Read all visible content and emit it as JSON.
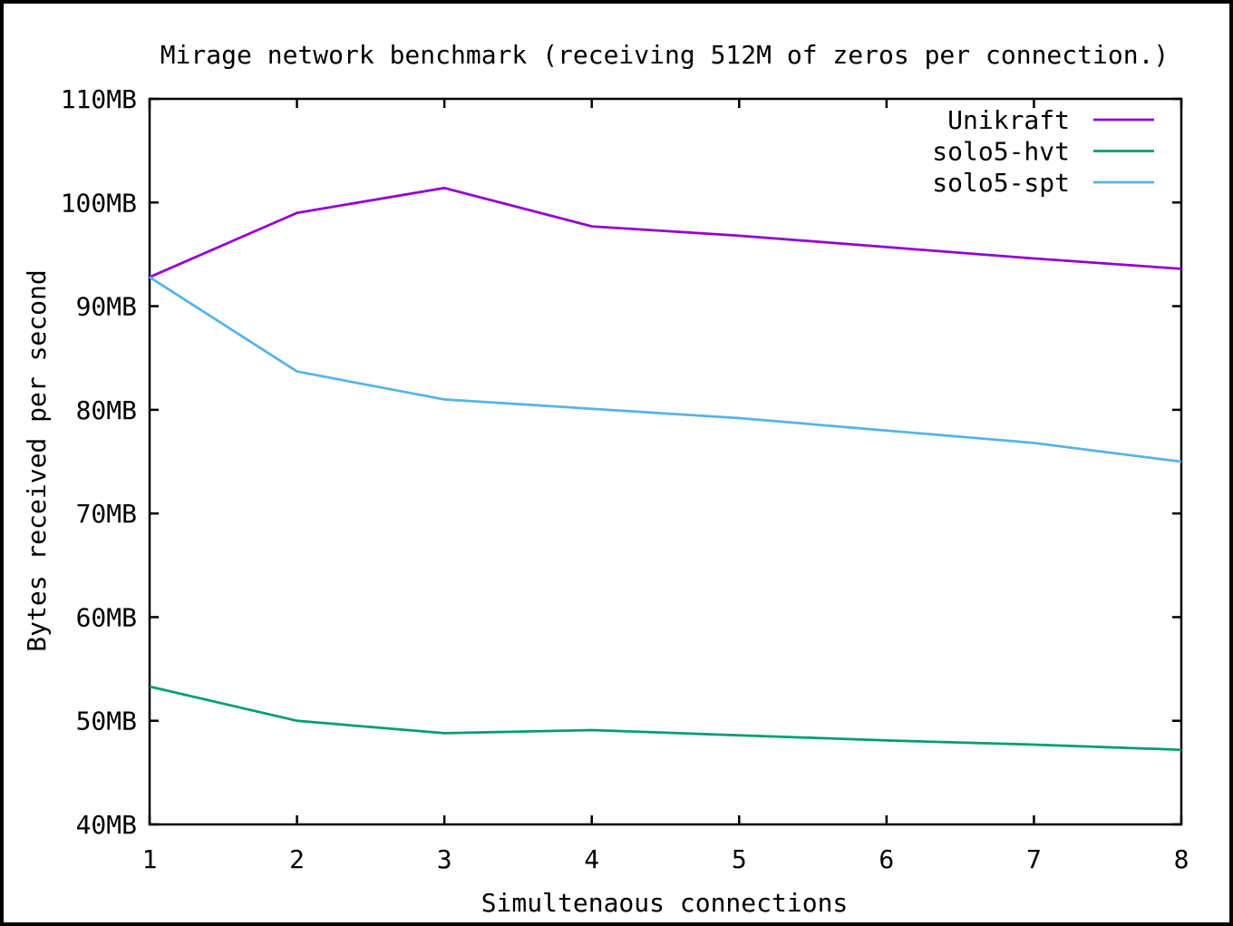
{
  "chart_data": {
    "type": "line",
    "title": "Mirage network benchmark (receiving 512M of zeros per connection.)",
    "xlabel": "Simultenaous connections",
    "ylabel": "Bytes received per second",
    "x": [
      1,
      2,
      3,
      4,
      5,
      6,
      7,
      8
    ],
    "xlim": [
      1,
      8
    ],
    "ylim": [
      40,
      110
    ],
    "ytick_step": 10,
    "ytick_format": "{v}MB",
    "xtick_labels": [
      "1",
      "2",
      "3",
      "4",
      "5",
      "6",
      "7",
      "8"
    ],
    "ytick_labels": [
      "40MB",
      "50MB",
      "60MB",
      "70MB",
      "80MB",
      "90MB",
      "100MB",
      "110MB"
    ],
    "grid": false,
    "legend_position": "top-right-inside",
    "series": [
      {
        "name": "Unikraft",
        "color": "#9400d3",
        "values": [
          92.8,
          99.0,
          101.4,
          97.7,
          96.8,
          95.7,
          94.6,
          93.6
        ]
      },
      {
        "name": "solo5-hvt",
        "color": "#009e73",
        "values": [
          53.3,
          50.0,
          48.8,
          49.1,
          48.6,
          48.1,
          47.7,
          47.2
        ]
      },
      {
        "name": "solo5-spt",
        "color": "#56b4e9",
        "values": [
          92.8,
          83.7,
          81.0,
          80.1,
          79.2,
          78.0,
          76.8,
          75.0
        ]
      }
    ],
    "colors": {
      "background": "#ffffff",
      "frame": "#000000",
      "text": "#000000"
    }
  }
}
